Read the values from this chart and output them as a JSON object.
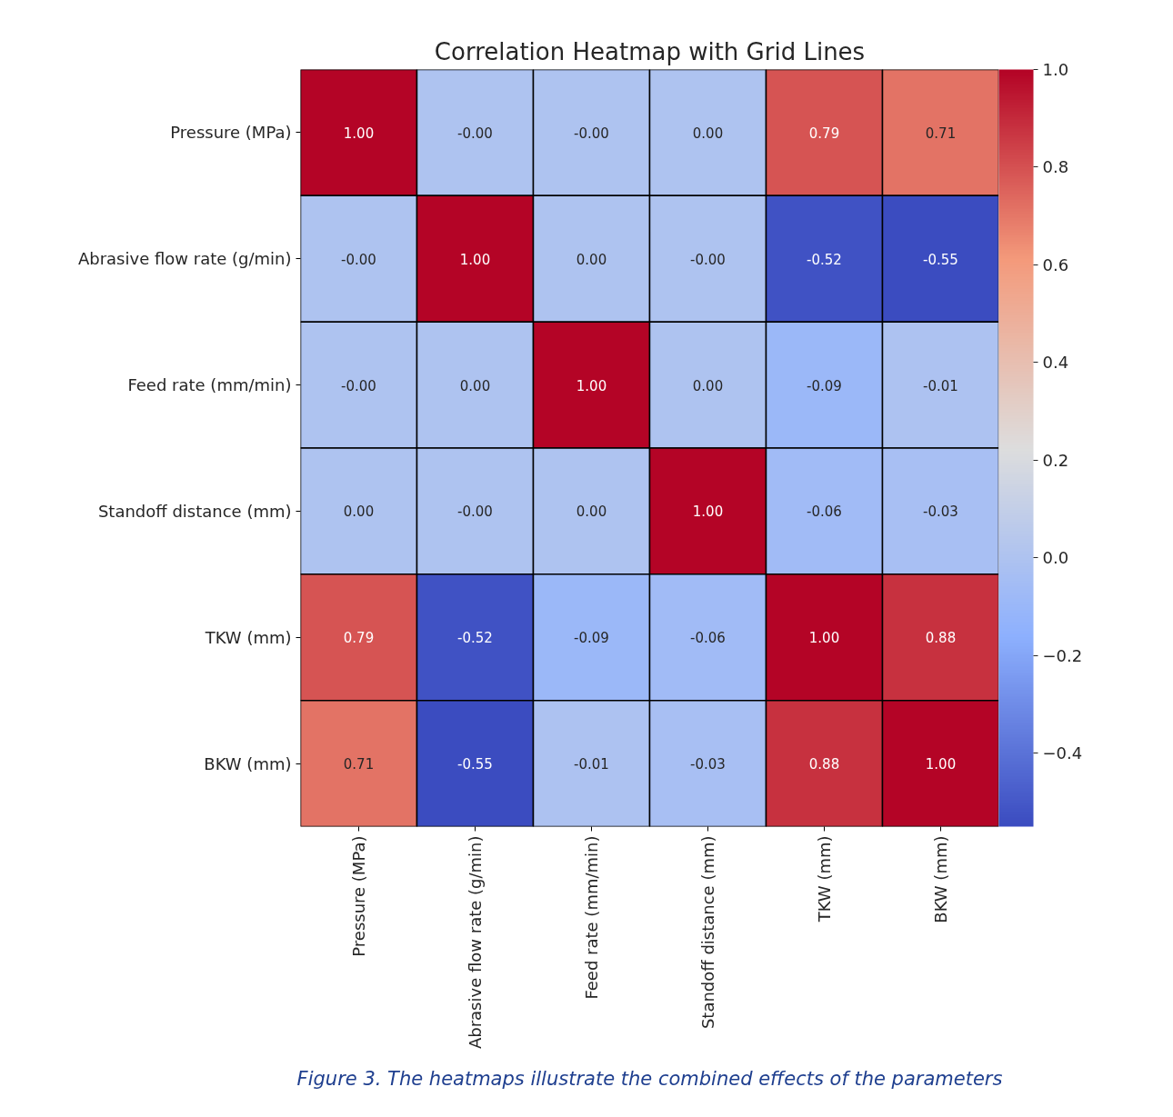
{
  "chart_data": {
    "type": "heatmap",
    "title": "Correlation Heatmap with Grid Lines",
    "categories": [
      "Pressure (MPa)",
      "Abrasive flow rate (g/min)",
      "Feed rate (mm/min)",
      "Standoff distance (mm)",
      "TKW (mm)",
      "BKW (mm)"
    ],
    "y_categories": [
      "Pressure (MPa)",
      "Abrasive flow rate (g/min)",
      "Feed rate (mm/min)",
      "Standoff distance (mm)",
      "TKW (mm)",
      "BKW (mm)"
    ],
    "cells": [
      [
        1.0,
        0.0,
        0.0,
        0.0,
        0.79,
        0.71
      ],
      [
        0.0,
        1.0,
        0.0,
        0.0,
        -0.52,
        -0.55
      ],
      [
        0.0,
        0.0,
        1.0,
        0.0,
        -0.09,
        -0.01
      ],
      [
        0.0,
        0.0,
        0.0,
        1.0,
        -0.06,
        -0.03
      ],
      [
        0.79,
        -0.52,
        -0.09,
        -0.06,
        1.0,
        0.88
      ],
      [
        0.71,
        -0.55,
        -0.01,
        -0.03,
        0.88,
        1.0
      ]
    ],
    "cell_labels": [
      [
        "1.00",
        "-0.00",
        "-0.00",
        "0.00",
        "0.79",
        "0.71"
      ],
      [
        "-0.00",
        "1.00",
        "0.00",
        "-0.00",
        "-0.52",
        "-0.55"
      ],
      [
        "-0.00",
        "0.00",
        "1.00",
        "0.00",
        "-0.09",
        "-0.01"
      ],
      [
        "0.00",
        "-0.00",
        "0.00",
        "1.00",
        "-0.06",
        "-0.03"
      ],
      [
        "0.79",
        "-0.52",
        "-0.09",
        "-0.06",
        "1.00",
        "0.88"
      ],
      [
        "0.71",
        "-0.55",
        "-0.01",
        "-0.03",
        "0.88",
        "1.00"
      ]
    ],
    "clim": [
      -0.55,
      1.0
    ],
    "cticks": [
      {
        "value": -0.4,
        "label": "−0.4"
      },
      {
        "value": -0.2,
        "label": "−0.2"
      },
      {
        "value": 0,
        "label": "0.0"
      },
      {
        "value": 0.2,
        "label": "0.2"
      },
      {
        "value": 0.4,
        "label": "0.4"
      },
      {
        "value": 0.6,
        "label": "0.6"
      },
      {
        "value": 0.8,
        "label": "0.8"
      },
      {
        "value": 1,
        "label": "1.0"
      }
    ],
    "annotations": [
      "Figure 3. The heatmaps illustrate the combined effects of the parameters"
    ]
  }
}
